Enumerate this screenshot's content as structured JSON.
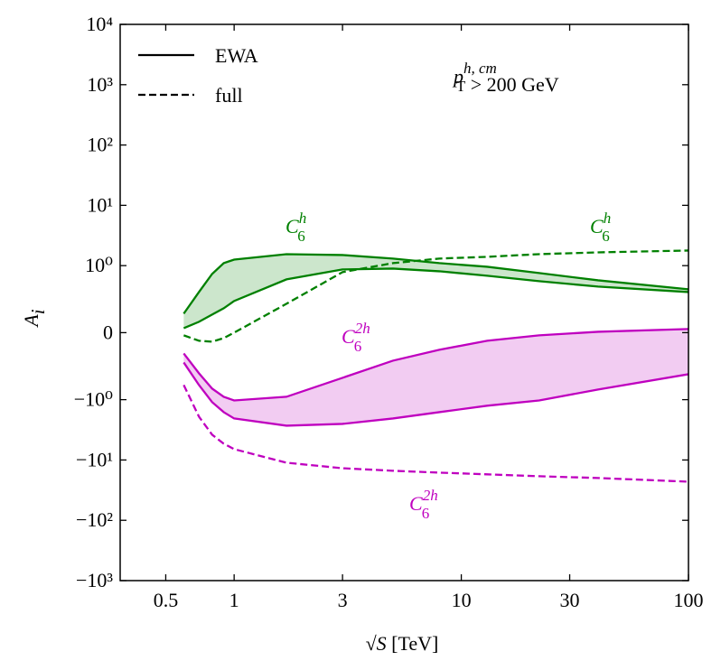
{
  "chart_data": {
    "type": "line",
    "x_label": {
      "base": "√S",
      "rest": " [TeV]"
    },
    "y_label": {
      "base": "A",
      "sub": "i"
    },
    "xscale": "log",
    "yscale": "symlog",
    "linthresh": 1,
    "xlim": [
      0.315,
      100
    ],
    "ylim": [
      -1000,
      10000
    ],
    "xticks": [
      0.5,
      1,
      3,
      10,
      30,
      100
    ],
    "yticks": [
      {
        "value": 10000,
        "label": "10⁴"
      },
      {
        "value": 1000,
        "label": "10³"
      },
      {
        "value": 100,
        "label": "10²"
      },
      {
        "value": 10,
        "label": "10¹"
      },
      {
        "value": 1,
        "label": "10⁰"
      },
      0,
      {
        "value": -1,
        "label": "−10⁰"
      },
      {
        "value": -10,
        "label": "−10¹"
      },
      {
        "value": -100,
        "label": "−10²"
      },
      {
        "value": -1000,
        "label": "−10³"
      }
    ],
    "legend_position": "upper left",
    "legend": [
      {
        "label": "EWA",
        "style": "solid"
      },
      {
        "label": "full",
        "style": "dashed"
      }
    ],
    "x": [
      0.6,
      0.7,
      0.8,
      0.9,
      1,
      1.7,
      3,
      5,
      8,
      13,
      22,
      40,
      100
    ],
    "series": [
      {
        "color": "#008000",
        "fill": "#cce6cc",
        "style": "band",
        "upper": [
          0.283,
          0.606,
          0.876,
          1.1,
          1.26,
          1.55,
          1.5,
          1.31,
          1.1,
          0.983,
          0.889,
          0.781,
          0.647
        ],
        "lower": [
          0.067,
          0.162,
          0.27,
          0.364,
          0.472,
          0.795,
          0.943,
          0.956,
          0.916,
          0.849,
          0.768,
          0.687,
          0.606
        ]
      },
      {
        "color": "#008000",
        "style": "dashed",
        "values": [
          -0.04,
          -0.121,
          -0.135,
          -0.081,
          0,
          0.431,
          0.903,
          1.1,
          1.31,
          1.4,
          1.55,
          1.66,
          1.78
        ]
      },
      {
        "color": "#bf00bf",
        "fill": "#f2ccf2",
        "style": "band",
        "upper": [
          -0.31,
          -0.606,
          -0.835,
          -0.957,
          -1.03,
          -0.957,
          -0.674,
          -0.418,
          -0.256,
          -0.121,
          -0.04,
          0.013,
          0.054
        ],
        "lower": [
          -0.445,
          -0.781,
          -1.1,
          -1.61,
          -2.05,
          -2.7,
          -2.52,
          -2.05,
          -1.61,
          -1.26,
          -1.03,
          -0.849,
          -0.62
        ]
      },
      {
        "color": "#bf00bf",
        "style": "dashed",
        "values": [
          -0.781,
          -1.91,
          -3.81,
          -5.37,
          -6.61,
          -11.1,
          -13.7,
          -15.1,
          -16.2,
          -17.3,
          -18.6,
          -19.9,
          -22.9
        ]
      }
    ],
    "annotations": [
      {
        "base": "C",
        "sub": "6",
        "sup": "h",
        "color": "#008000"
      },
      {
        "base": "C",
        "sub": "6",
        "sup": "h",
        "color": "#008000"
      },
      {
        "base": "C",
        "sub": "6",
        "sup": "2h",
        "color": "#bf00bf"
      },
      {
        "base": "C",
        "sub": "6",
        "sup": "2h",
        "color": "#bf00bf"
      },
      {
        "base": "p",
        "sub": "T",
        "sup": "h, cm",
        "rest": " > 200 GeV",
        "color": "#000000"
      }
    ]
  }
}
